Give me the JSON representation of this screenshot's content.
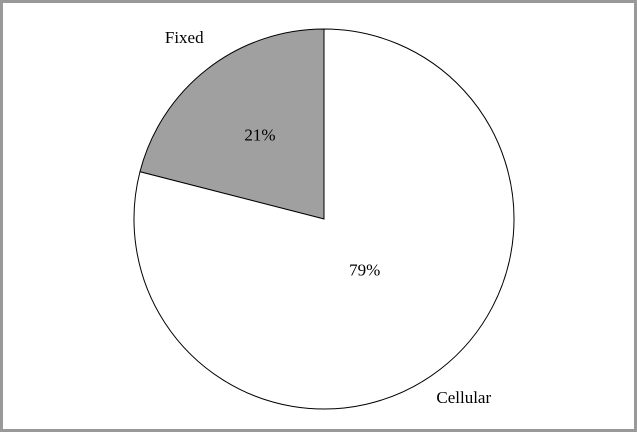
{
  "chart_data": {
    "type": "pie",
    "categories": [
      "Fixed",
      "Cellular"
    ],
    "values": [
      21,
      79
    ],
    "value_labels": [
      "21%",
      "79%"
    ],
    "colors": [
      "#a0a0a0",
      "#ffffff"
    ]
  }
}
